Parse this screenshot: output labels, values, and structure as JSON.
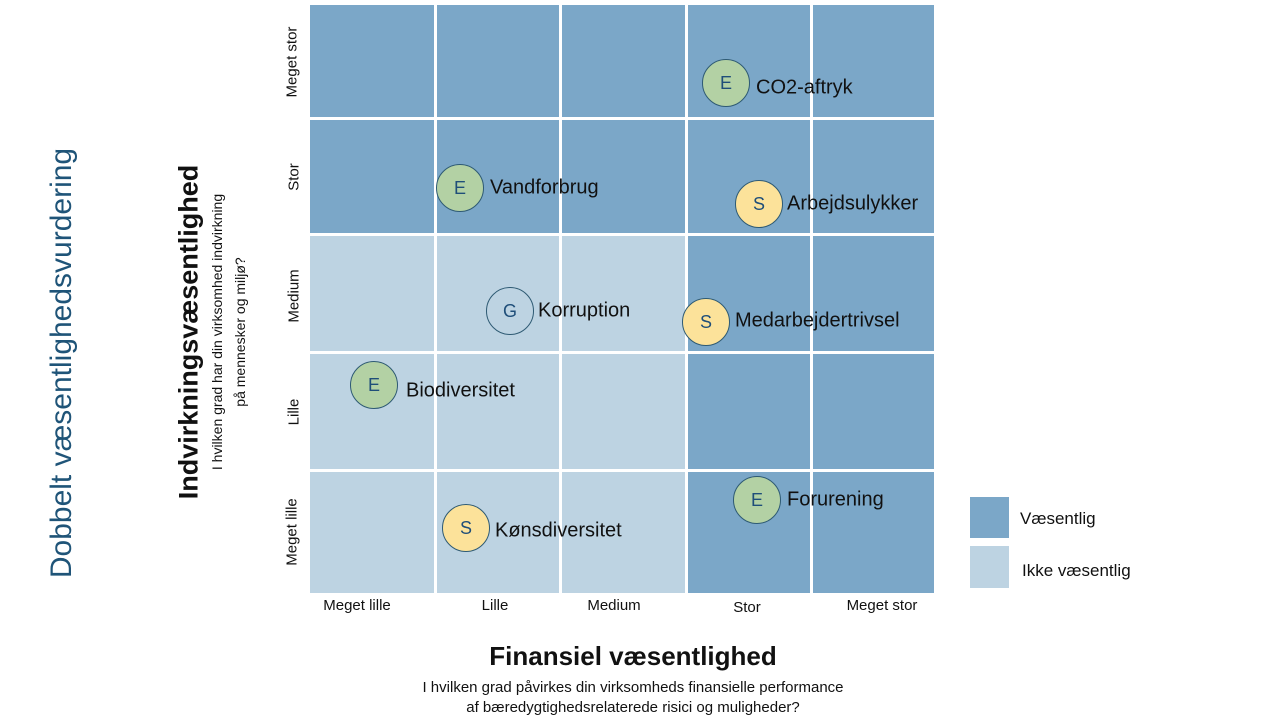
{
  "title": "Dobbelt væsentlighedsvurdering",
  "y_axis": {
    "title": "Indvirkningsvæsentlighed",
    "subtitle_line1": "I hvilken grad har din virksomhed indvirkning",
    "subtitle_line2": "på mennesker og miljø?",
    "ticks": [
      "Meget stor",
      "Stor",
      "Medium",
      "Lille",
      "Meget lille"
    ]
  },
  "x_axis": {
    "title": "Finansiel væsentlighed",
    "subtitle_line1": "I hvilken grad påvirkes din virksomheds finansielle performance",
    "subtitle_line2": "af bæredygtighedsrelaterede risici og muligheder?",
    "ticks": [
      "Meget lille",
      "Lille",
      "Medium",
      "Stor",
      "Meget stor"
    ]
  },
  "legend": [
    {
      "label": "Væsentlig",
      "color": "#7BA7C8"
    },
    {
      "label": "Ikke væsentlig",
      "color": "#BDD3E2"
    }
  ],
  "topics": [
    {
      "letter": "E",
      "label": "CO2-aftryk"
    },
    {
      "letter": "E",
      "label": "Vandforbrug"
    },
    {
      "letter": "S",
      "label": "Arbejdsulykker"
    },
    {
      "letter": "G",
      "label": "Korruption"
    },
    {
      "letter": "S",
      "label": "Medarbejdertrivsel"
    },
    {
      "letter": "E",
      "label": "Biodiversitet"
    },
    {
      "letter": "E",
      "label": "Forurening"
    },
    {
      "letter": "S",
      "label": "Kønsdiversitet"
    }
  ]
}
